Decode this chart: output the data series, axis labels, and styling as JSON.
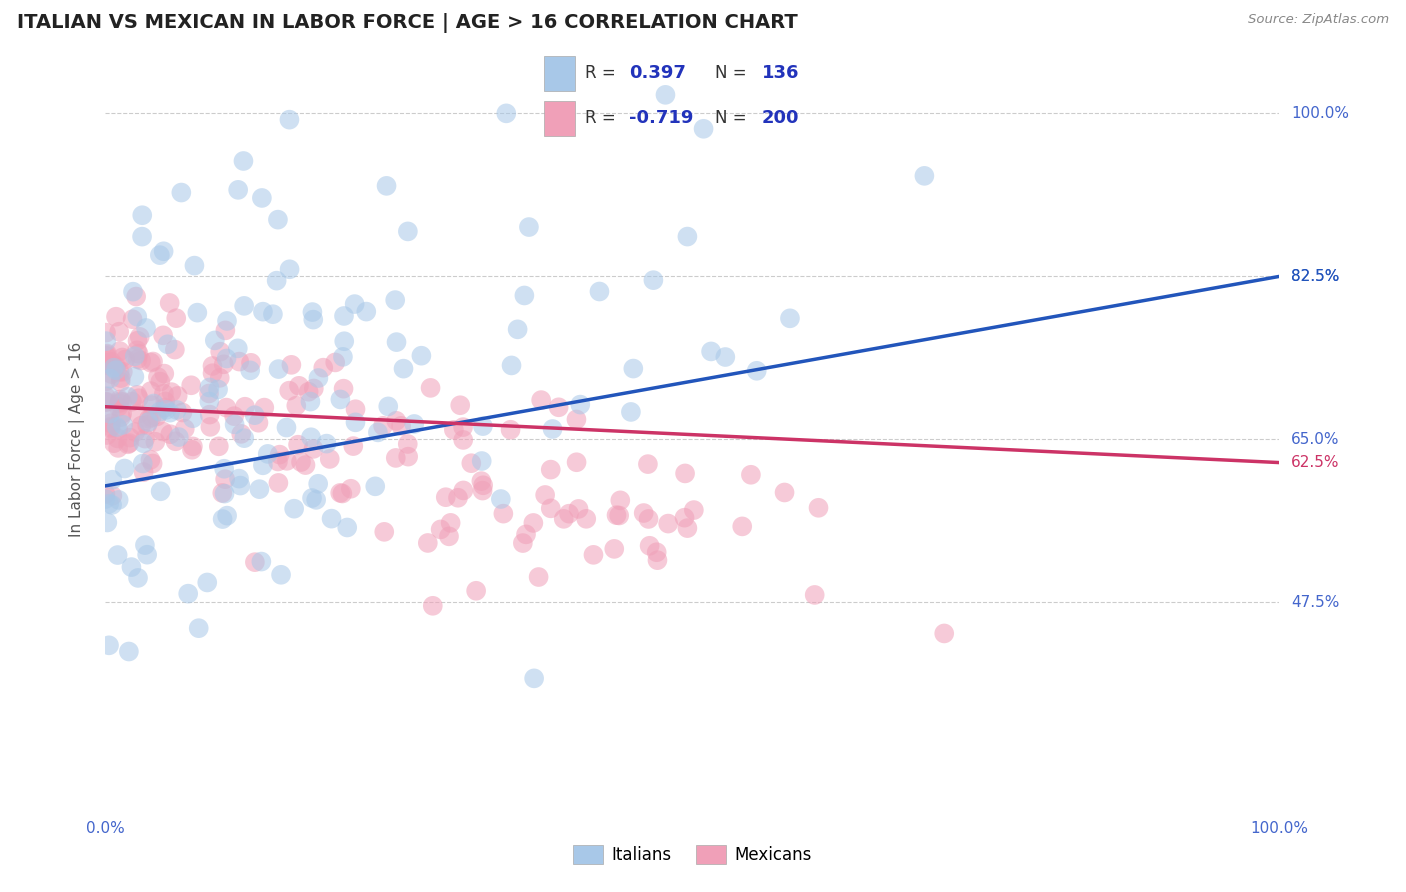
{
  "title": "ITALIAN VS MEXICAN IN LABOR FORCE | AGE > 16 CORRELATION CHART",
  "source": "Source: ZipAtlas.com",
  "ylabel": "In Labor Force | Age > 16",
  "xlim": [
    0.0,
    1.0
  ],
  "ylim": [
    0.25,
    1.05
  ],
  "yticks": [
    0.475,
    0.65,
    0.825,
    1.0
  ],
  "ytick_labels": [
    "47.5%",
    "65.0%",
    "82.5%",
    "100.0%"
  ],
  "xtick_labels": [
    "0.0%",
    "100.0%"
  ],
  "legend_r_italian": "0.397",
  "legend_n_italian": "136",
  "legend_r_mexican": "-0.719",
  "legend_n_mexican": "200",
  "italian_color": "#A8C8E8",
  "mexican_color": "#F0A0B8",
  "italian_line_color": "#2255BB",
  "mexican_line_color": "#CC3366",
  "tick_label_color": "#4466CC",
  "background_color": "#FFFFFF",
  "grid_color": "#CCCCCC",
  "title_color": "#222222",
  "legend_text_color": "#2233BB",
  "seed": 12345
}
